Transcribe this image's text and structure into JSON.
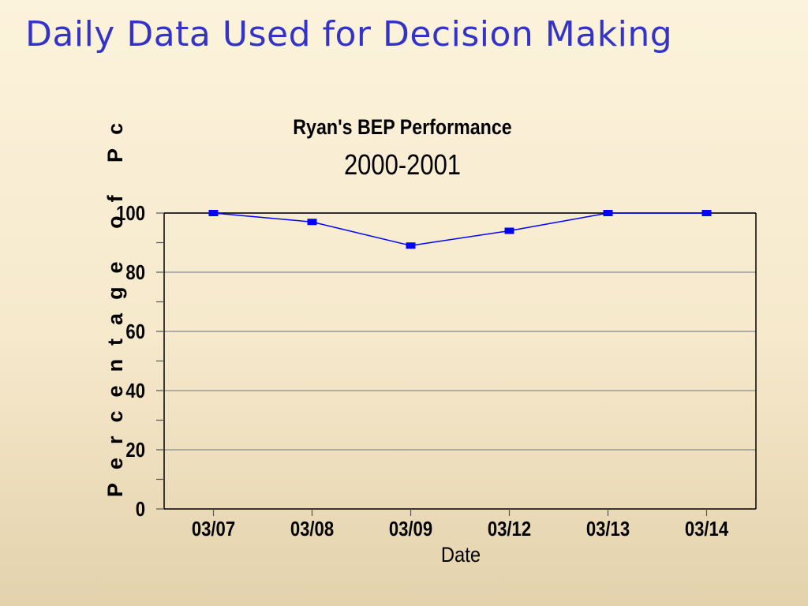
{
  "slide": {
    "title": "Daily Data Used for Decision Making"
  },
  "chart_data": {
    "type": "line",
    "title": "Ryan's BEP Performance",
    "subtitle": "2000-2001",
    "xlabel": "Date",
    "ylabel": "Percentage of Pc",
    "categories": [
      "03/07",
      "03/08",
      "03/09",
      "03/12",
      "03/13",
      "03/14"
    ],
    "series": [
      {
        "values": [
          100,
          97,
          89,
          94,
          100,
          100
        ],
        "color": "#0000ff"
      }
    ],
    "ylim": [
      0,
      100
    ],
    "yticks": [
      0,
      20,
      40,
      60,
      80,
      100
    ],
    "grid": true,
    "legend": "none",
    "colors": {
      "line": "#0000ff",
      "grid": "#999999",
      "axis": "#000000"
    }
  }
}
